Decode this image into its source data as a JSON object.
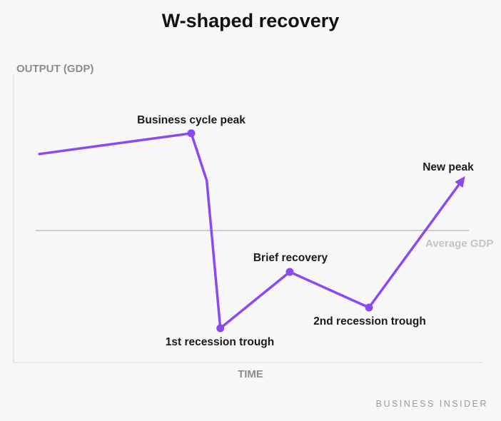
{
  "chart_data": {
    "type": "line",
    "title": "W-shaped recovery",
    "xlabel": "TIME",
    "ylabel": "OUTPUT (GDP)",
    "xlim": [
      0,
      100
    ],
    "ylim": [
      0,
      100
    ],
    "grid": false,
    "series": [
      {
        "color": "#8a4af3",
        "points": [
          {
            "x": 5.5,
            "y": 72.5,
            "label": "",
            "marker": false
          },
          {
            "x": 37.9,
            "y": 79.7,
            "label": "Business cycle peak",
            "marker": true
          },
          {
            "x": 41.2,
            "y": 63.3,
            "label": "",
            "marker": false
          },
          {
            "x": 44.1,
            "y": 11.9,
            "label": "1st recession trough",
            "marker": true
          },
          {
            "x": 58.9,
            "y": 31.5,
            "label": "Brief recovery",
            "marker": true
          },
          {
            "x": 75.8,
            "y": 19.1,
            "label": "2nd recession trough",
            "marker": true
          },
          {
            "x": 96.3,
            "y": 64.8,
            "label": "New peak",
            "marker": "arrow"
          }
        ]
      }
    ],
    "reference_line": {
      "label": "Average GDP",
      "y": 45.9,
      "x_range": [
        4.7,
        97.1
      ],
      "color": "#bdbdbd"
    },
    "axis_color": "#e2e2e2"
  },
  "footer": {
    "credit": "BUSINESS INSIDER"
  }
}
